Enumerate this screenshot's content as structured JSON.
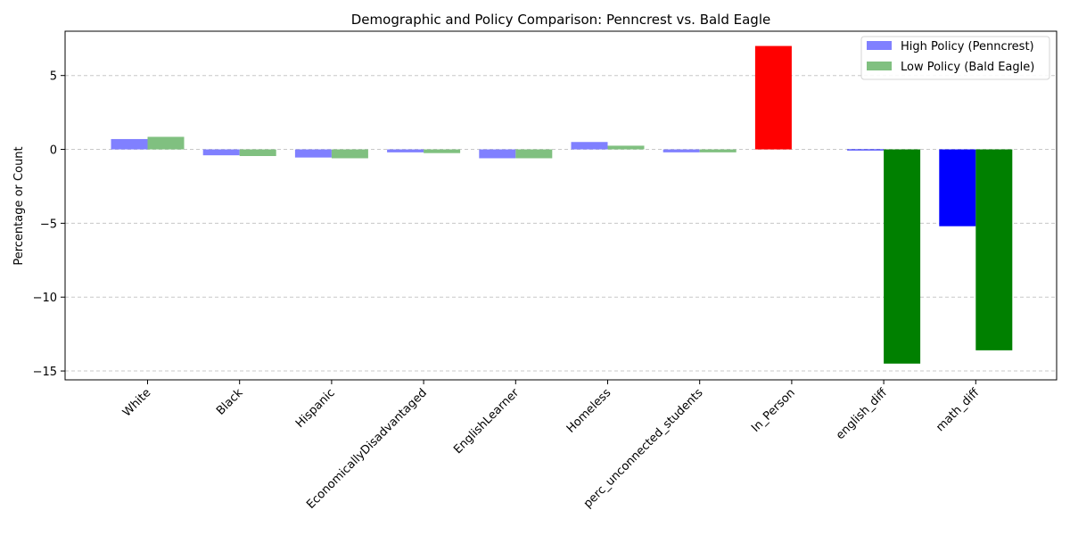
{
  "chart_data": {
    "type": "bar",
    "title": "Demographic and Policy Comparison: Penncrest vs. Bald Eagle",
    "xlabel": "",
    "ylabel": "Percentage or Count",
    "ylim": [
      -15.6,
      8.0
    ],
    "yticks": [
      -15,
      -10,
      -5,
      0,
      5
    ],
    "ytick_labels": [
      "−15",
      "−10",
      "−5",
      "0",
      "5"
    ],
    "grid": "horizontal dashed",
    "legend_position": "top-right",
    "categories": [
      "White",
      "Black",
      "Hispanic",
      "EconomicallyDisadvantaged",
      "EnglishLearner",
      "Homeless",
      "perc_unconnected_students",
      "In_Person",
      "english_diff",
      "math_diff"
    ],
    "series": [
      {
        "name": "High Policy (Penncrest)",
        "color": "#8080ff",
        "values": [
          0.7,
          -0.4,
          -0.55,
          -0.2,
          -0.6,
          0.5,
          -0.2,
          7.0,
          -0.05,
          -5.2
        ],
        "bar_colors": [
          "#8080ff",
          "#8080ff",
          "#8080ff",
          "#8080ff",
          "#8080ff",
          "#8080ff",
          "#8080ff",
          "#ff0000",
          "#0000ff",
          "#0000ff"
        ]
      },
      {
        "name": "Low Policy (Bald Eagle)",
        "color": "#80c080",
        "values": [
          0.85,
          -0.45,
          -0.6,
          -0.25,
          -0.6,
          0.25,
          -0.2,
          0.0,
          -14.5,
          -13.6
        ],
        "bar_colors": [
          "#80c080",
          "#80c080",
          "#80c080",
          "#80c080",
          "#80c080",
          "#80c080",
          "#80c080",
          "#80c080",
          "#008000",
          "#008000"
        ]
      }
    ]
  }
}
